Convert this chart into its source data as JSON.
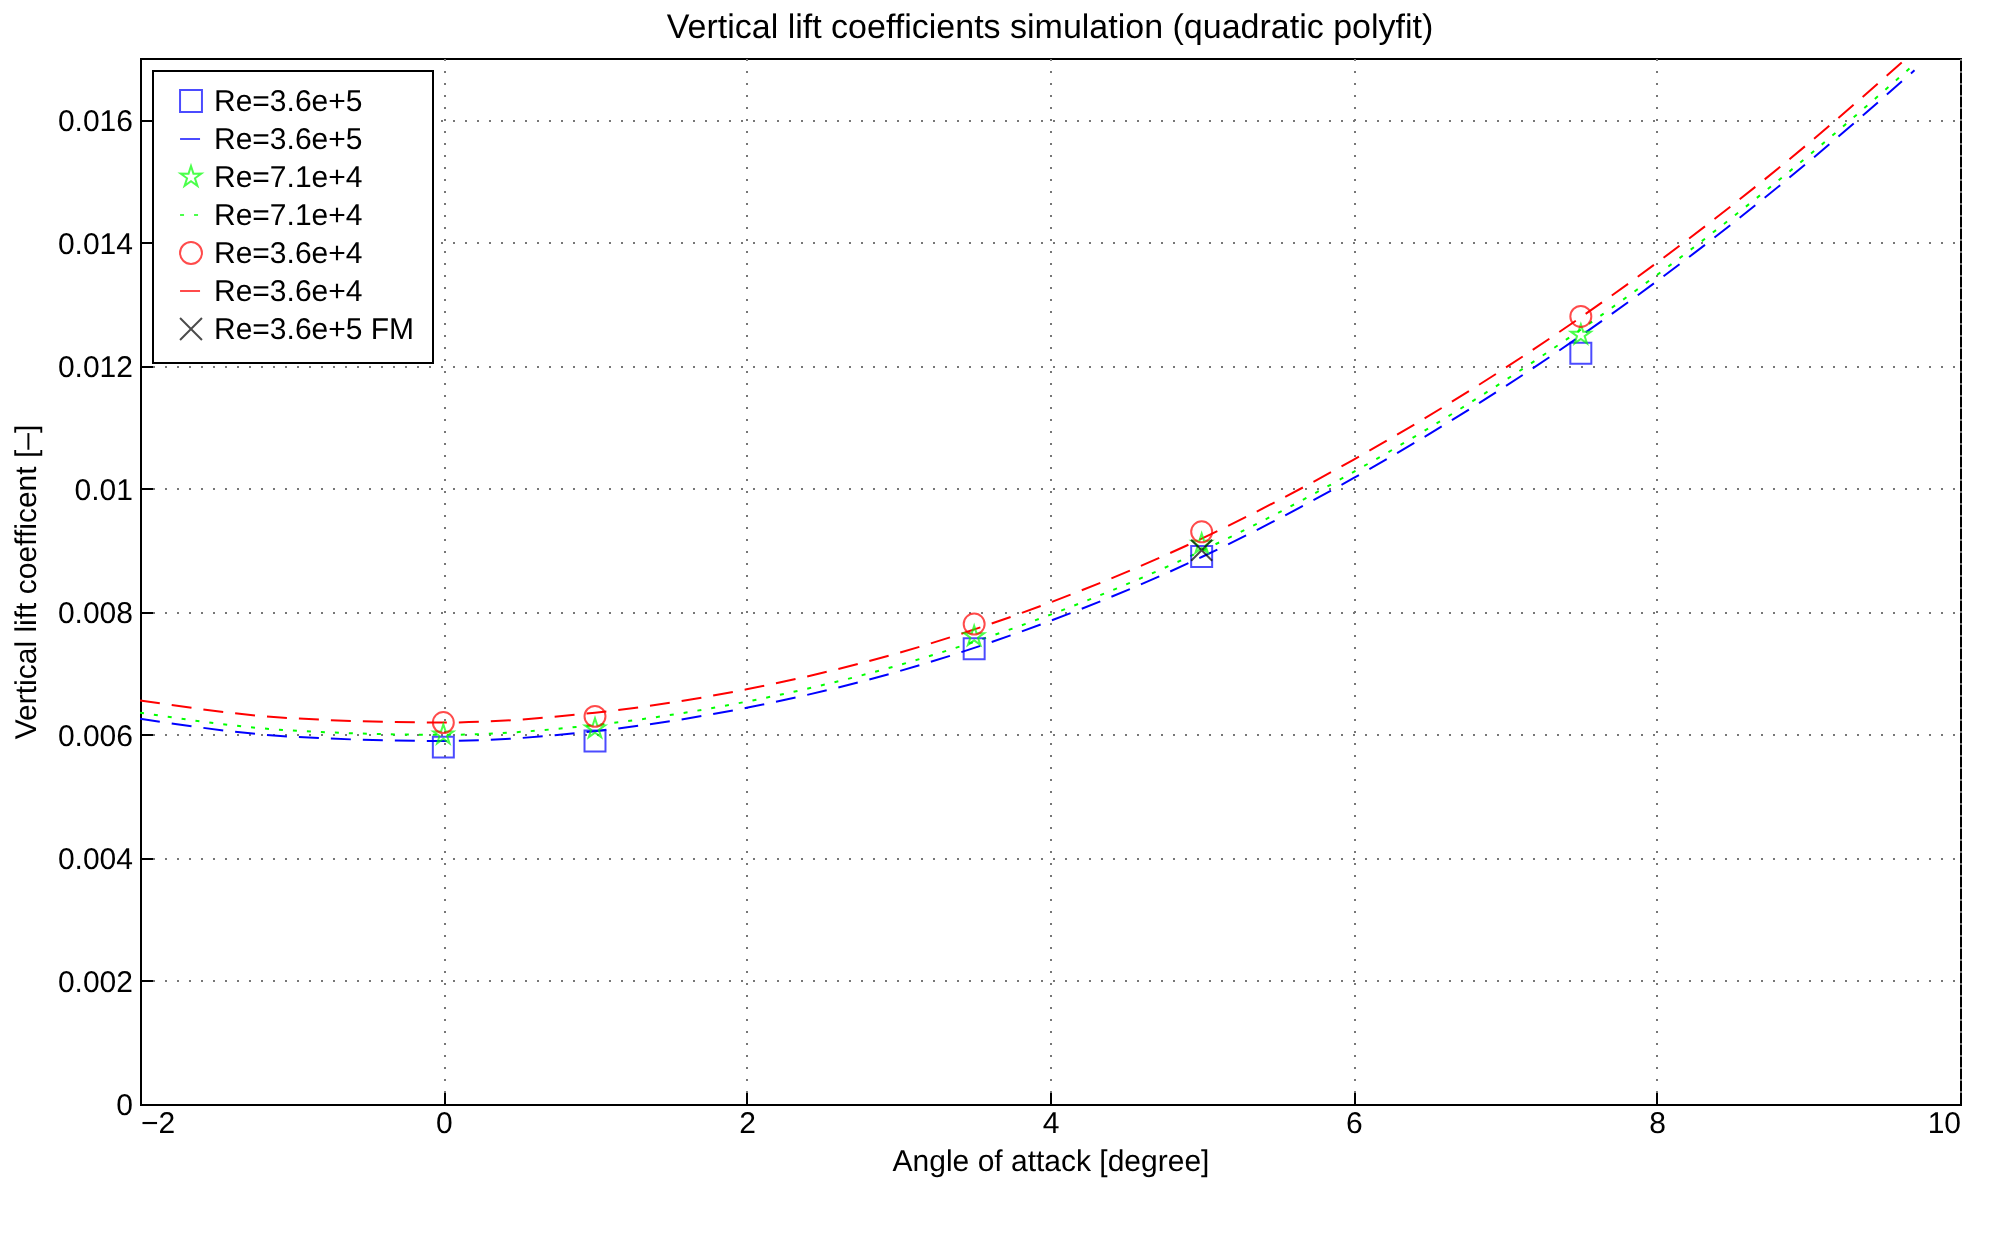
{
  "chart_data": {
    "type": "scatter",
    "title": "Vertical lift coefficients simulation (quadratic polyfit)",
    "xlabel": "Angle of attack [degree]",
    "ylabel": "Vertical lift coefficent [–]",
    "xlim": [
      -2,
      10
    ],
    "xticks": [
      -2,
      0,
      2,
      4,
      6,
      8,
      10
    ],
    "ylim": [
      0,
      0.017
    ],
    "yticks": [
      0,
      0.002,
      0.004,
      0.006,
      0.008,
      0.01,
      0.012,
      0.014,
      0.016
    ],
    "grid": true,
    "legend": "top left",
    "series": [
      {
        "name": "Re=3.6e+5",
        "type": "scatter",
        "marker": "square",
        "color": "#0000ff",
        "x": [
          0,
          1,
          3.5,
          5,
          7.5
        ],
        "values": [
          0.0058,
          0.0059,
          0.0074,
          0.0089,
          0.0122
        ]
      },
      {
        "name": "Re=3.6e+5",
        "type": "line",
        "line_style": "dashed",
        "color": "#0000ff",
        "x": [
          -2,
          -1,
          0,
          1,
          2,
          3,
          4,
          5,
          6,
          7,
          8,
          9,
          9.7
        ],
        "values": [
          0.00626,
          0.00597,
          0.0059,
          0.00606,
          0.00644,
          0.00703,
          0.00785,
          0.00889,
          0.01017,
          0.01166,
          0.01337,
          0.01531,
          0.0168
        ]
      },
      {
        "name": "Re=7.1e+4",
        "type": "scatter",
        "marker": "star",
        "color": "#00ff00",
        "x": [
          0,
          1,
          3.5,
          5,
          7.5
        ],
        "values": [
          0.006,
          0.0061,
          0.0076,
          0.0091,
          0.0125
        ]
      },
      {
        "name": "Re=7.1e+4",
        "type": "line",
        "line_style": "dotted",
        "color": "#00ff00",
        "x": [
          -2,
          -1,
          0,
          1,
          2,
          3,
          4,
          5,
          6,
          7,
          8,
          9,
          9.7
        ],
        "values": [
          0.00636,
          0.00607,
          0.006,
          0.00616,
          0.00654,
          0.00713,
          0.00795,
          0.00899,
          0.01027,
          0.01176,
          0.01347,
          0.01541,
          0.0169
        ]
      },
      {
        "name": "Re=3.6e+4",
        "type": "scatter",
        "marker": "circle",
        "color": "#ff0000",
        "x": [
          0,
          1,
          3.5,
          5,
          7.5
        ],
        "values": [
          0.0062,
          0.0063,
          0.0078,
          0.0093,
          0.0128
        ]
      },
      {
        "name": "Re=3.6e+4",
        "type": "line",
        "line_style": "dashed",
        "color": "#ff0000",
        "x": [
          -2,
          -1,
          0,
          1,
          2,
          3,
          4,
          5,
          6,
          7,
          8,
          9,
          9.65
        ],
        "values": [
          0.00656,
          0.00627,
          0.0062,
          0.00636,
          0.00674,
          0.00733,
          0.00815,
          0.00919,
          0.01047,
          0.01196,
          0.01367,
          0.01561,
          0.017
        ]
      },
      {
        "name": "Re=3.6e+5 FM",
        "type": "scatter",
        "marker": "cross",
        "color": "#000000",
        "x": [
          5
        ],
        "values": [
          0.009
        ]
      }
    ]
  }
}
